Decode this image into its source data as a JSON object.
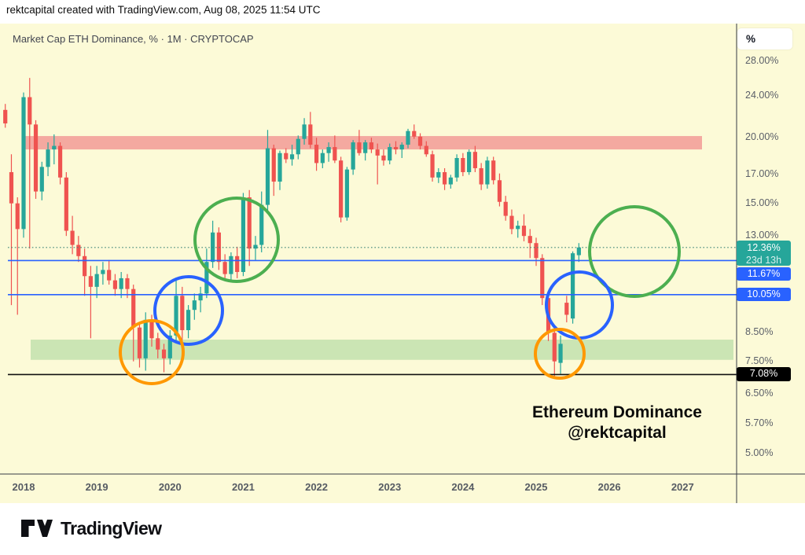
{
  "header": {
    "credit": "rektcapital created with TradingView.com, Aug 08, 2025 11:54 UTC"
  },
  "chart": {
    "legend": "Market Cap ETH Dominance, % · 1M · CRYPTOCAP",
    "axis_button_label": "%",
    "watermark_line1": "Ethereum Dominance",
    "watermark_line2": "@rektcapital",
    "price_axis_ticks": [
      {
        "label": "28.00%",
        "value": 28.0
      },
      {
        "label": "24.00%",
        "value": 24.0
      },
      {
        "label": "20.00%",
        "value": 20.0
      },
      {
        "label": "17.00%",
        "value": 17.0
      },
      {
        "label": "15.00%",
        "value": 15.0
      },
      {
        "label": "13.00%",
        "value": 13.0
      },
      {
        "label": "8.50%",
        "value": 8.5
      },
      {
        "label": "7.50%",
        "value": 7.5
      },
      {
        "label": "6.50%",
        "value": 6.5
      },
      {
        "label": "5.70%",
        "value": 5.7
      },
      {
        "label": "5.00%",
        "value": 5.0
      }
    ],
    "price_labels": [
      {
        "text": "12.36%",
        "sub": "23d 13h",
        "value": 12.36,
        "bg": "#26A69A",
        "kind": "current"
      },
      {
        "text": "11.67%",
        "value": 11.67,
        "bg": "#2962FF",
        "kind": "level"
      },
      {
        "text": "10.05%",
        "value": 10.05,
        "bg": "#2962FF",
        "kind": "level"
      },
      {
        "text": "7.08%",
        "value": 7.08,
        "bg": "#000000",
        "kind": "level"
      }
    ],
    "time_axis_years": [
      "2018",
      "2019",
      "2020",
      "2021",
      "2022",
      "2023",
      "2024",
      "2025",
      "2026",
      "2027"
    ]
  },
  "chart_data": {
    "type": "candlestick",
    "title": "Market Cap ETH Dominance, % · 1M · CRYPTOCAP",
    "ylabel": "%",
    "yscale": "log",
    "ylim": [
      4.7,
      29.5
    ],
    "xlim_years": [
      2017.75,
      2027.8
    ],
    "current_price": 12.36,
    "bar_countdown": "23d 13h",
    "up_color": "#26A69A",
    "down_color": "#EF5350",
    "levels": [
      {
        "value": 12.36,
        "color": "#3E8578",
        "style": "dotted"
      },
      {
        "value": 11.67,
        "color": "#2962FF",
        "style": "solid"
      },
      {
        "value": 10.05,
        "color": "#2962FF",
        "style": "solid"
      },
      {
        "value": 7.08,
        "color": "#111111",
        "style": "solid"
      }
    ],
    "bands": [
      {
        "from": 19.0,
        "to": 20.15,
        "x1": 31,
        "x2": 893,
        "color": "#F4A9A0",
        "name": "resistance-zone"
      },
      {
        "from": 7.55,
        "to": 8.25,
        "x1": 39,
        "x2": 933,
        "color": "#CBE5B4",
        "name": "support-zone"
      }
    ],
    "circle_annotations": [
      {
        "cx": 301,
        "cy": 305,
        "r": 53,
        "color": "#4CAF50"
      },
      {
        "cx": 240,
        "cy": 395,
        "r": 43,
        "color": "#2962FF"
      },
      {
        "cx": 193,
        "cy": 448,
        "r": 40,
        "color": "#FF9800"
      },
      {
        "cx": 807,
        "cy": 320,
        "r": 57,
        "color": "#4CAF50"
      },
      {
        "cx": 737,
        "cy": 388,
        "r": 42,
        "color": "#2962FF"
      },
      {
        "cx": 712,
        "cy": 450,
        "r": 31,
        "color": "#FF9800"
      }
    ],
    "candles": [
      [
        "2017-10",
        22.6,
        23.2,
        20.9,
        21.3
      ],
      [
        "2017-11",
        17.2,
        18.6,
        9.6,
        15.0
      ],
      [
        "2017-12",
        15.0,
        15.4,
        9.2,
        13.4
      ],
      [
        "2018-01",
        13.4,
        24.4,
        12.9,
        23.9
      ],
      [
        "2018-02",
        23.9,
        26.0,
        12.3,
        21.2
      ],
      [
        "2018-03",
        21.2,
        21.6,
        15.3,
        15.8
      ],
      [
        "2018-04",
        15.8,
        18.0,
        15.2,
        17.6
      ],
      [
        "2018-05",
        17.6,
        19.6,
        16.9,
        19.0
      ],
      [
        "2018-06",
        19.0,
        20.3,
        17.8,
        19.3
      ],
      [
        "2018-07",
        19.3,
        19.6,
        16.3,
        16.8
      ],
      [
        "2018-08",
        16.8,
        17.2,
        13.0,
        13.3
      ],
      [
        "2018-09",
        13.3,
        14.2,
        12.0,
        12.5
      ],
      [
        "2018-10",
        12.5,
        13.0,
        11.6,
        11.9
      ],
      [
        "2018-11",
        11.9,
        12.3,
        10.0,
        10.9
      ],
      [
        "2018-12",
        10.9,
        11.4,
        8.3,
        10.4
      ],
      [
        "2019-01",
        10.4,
        11.4,
        9.9,
        11.0
      ],
      [
        "2019-02",
        11.0,
        11.6,
        10.5,
        11.2
      ],
      [
        "2019-03",
        11.2,
        11.7,
        10.5,
        10.7
      ],
      [
        "2019-04",
        10.7,
        11.0,
        10.0,
        10.3
      ],
      [
        "2019-05",
        10.3,
        11.1,
        9.9,
        10.8
      ],
      [
        "2019-06",
        10.8,
        11.0,
        9.9,
        10.3
      ],
      [
        "2019-07",
        10.3,
        10.5,
        7.5,
        8.7
      ],
      [
        "2019-08",
        8.7,
        8.9,
        7.3,
        7.6
      ],
      [
        "2019-09",
        7.6,
        9.3,
        7.2,
        9.0
      ],
      [
        "2019-10",
        9.0,
        9.2,
        8.0,
        8.3
      ],
      [
        "2019-11",
        8.3,
        8.5,
        7.6,
        7.9
      ],
      [
        "2019-12",
        7.9,
        8.1,
        7.15,
        7.6
      ],
      [
        "2020-01",
        7.6,
        8.6,
        7.4,
        8.4
      ],
      [
        "2020-02",
        8.4,
        10.7,
        8.2,
        10.0
      ],
      [
        "2020-03",
        10.0,
        10.4,
        8.1,
        8.6
      ],
      [
        "2020-04",
        8.6,
        9.6,
        8.3,
        9.4
      ],
      [
        "2020-05",
        9.4,
        10.1,
        9.0,
        9.8
      ],
      [
        "2020-06",
        9.8,
        10.4,
        9.3,
        10.1
      ],
      [
        "2020-07",
        10.1,
        12.3,
        9.9,
        11.6
      ],
      [
        "2020-08",
        11.6,
        13.9,
        11.3,
        13.2
      ],
      [
        "2020-09",
        13.2,
        13.5,
        11.2,
        11.6
      ],
      [
        "2020-10",
        11.6,
        12.0,
        10.7,
        11.0
      ],
      [
        "2020-11",
        11.0,
        12.1,
        10.6,
        11.9
      ],
      [
        "2020-12",
        11.9,
        12.4,
        10.8,
        11.1
      ],
      [
        "2021-01",
        11.1,
        15.7,
        10.9,
        15.4
      ],
      [
        "2021-02",
        15.4,
        15.9,
        11.4,
        12.3
      ],
      [
        "2021-03",
        12.3,
        13.0,
        11.7,
        12.5
      ],
      [
        "2021-04",
        12.5,
        15.8,
        12.1,
        14.9
      ],
      [
        "2021-05",
        14.9,
        20.7,
        14.4,
        19.1
      ],
      [
        "2021-06",
        19.1,
        19.4,
        15.5,
        16.5
      ],
      [
        "2021-07",
        16.5,
        18.9,
        15.9,
        18.7
      ],
      [
        "2021-08",
        18.7,
        19.1,
        17.9,
        18.2
      ],
      [
        "2021-09",
        18.2,
        19.4,
        17.7,
        18.6
      ],
      [
        "2021-10",
        18.6,
        20.2,
        18.2,
        19.9
      ],
      [
        "2021-11",
        19.9,
        21.8,
        19.4,
        21.2
      ],
      [
        "2021-12",
        21.2,
        22.4,
        19.1,
        19.4
      ],
      [
        "2022-01",
        19.4,
        20.0,
        17.3,
        17.9
      ],
      [
        "2022-02",
        17.9,
        19.0,
        17.5,
        18.7
      ],
      [
        "2022-03",
        18.7,
        19.6,
        18.0,
        19.2
      ],
      [
        "2022-04",
        19.2,
        20.2,
        17.9,
        18.1
      ],
      [
        "2022-05",
        18.1,
        18.4,
        13.8,
        14.1
      ],
      [
        "2022-06",
        14.1,
        17.6,
        13.9,
        17.4
      ],
      [
        "2022-07",
        17.4,
        19.8,
        17.0,
        19.6
      ],
      [
        "2022-08",
        19.6,
        20.7,
        18.5,
        18.7
      ],
      [
        "2022-09",
        18.7,
        19.8,
        18.1,
        19.6
      ],
      [
        "2022-10",
        19.6,
        20.0,
        18.7,
        19.0
      ],
      [
        "2022-11",
        19.0,
        19.5,
        16.3,
        18.5
      ],
      [
        "2022-12",
        18.5,
        19.0,
        17.7,
        18.1
      ],
      [
        "2023-01",
        18.1,
        19.5,
        17.8,
        19.2
      ],
      [
        "2023-02",
        19.2,
        19.7,
        18.6,
        19.0
      ],
      [
        "2023-03",
        19.0,
        19.6,
        18.3,
        19.4
      ],
      [
        "2023-04",
        19.4,
        20.8,
        19.1,
        20.6
      ],
      [
        "2023-05",
        20.6,
        21.2,
        19.9,
        20.1
      ],
      [
        "2023-06",
        20.1,
        20.4,
        19.0,
        19.3
      ],
      [
        "2023-07",
        19.3,
        19.7,
        18.4,
        18.6
      ],
      [
        "2023-08",
        18.6,
        18.9,
        16.5,
        16.8
      ],
      [
        "2023-09",
        16.8,
        17.5,
        16.4,
        17.2
      ],
      [
        "2023-10",
        17.2,
        17.5,
        15.9,
        16.3
      ],
      [
        "2023-11",
        16.3,
        17.0,
        16.0,
        16.8
      ],
      [
        "2023-12",
        16.8,
        18.6,
        16.5,
        18.3
      ],
      [
        "2024-01",
        18.3,
        18.7,
        16.9,
        17.2
      ],
      [
        "2024-02",
        17.2,
        19.0,
        17.0,
        18.8
      ],
      [
        "2024-03",
        18.8,
        19.3,
        17.2,
        17.5
      ],
      [
        "2024-04",
        17.5,
        17.9,
        15.9,
        16.3
      ],
      [
        "2024-05",
        16.3,
        18.4,
        16.0,
        18.1
      ],
      [
        "2024-06",
        18.1,
        18.4,
        16.3,
        16.6
      ],
      [
        "2024-07",
        16.6,
        17.1,
        14.8,
        15.1
      ],
      [
        "2024-08",
        15.1,
        15.5,
        13.9,
        14.2
      ],
      [
        "2024-09",
        14.2,
        14.6,
        13.1,
        13.4
      ],
      [
        "2024-10",
        13.4,
        13.9,
        12.9,
        13.6
      ],
      [
        "2024-11",
        13.6,
        14.3,
        12.7,
        13.0
      ],
      [
        "2024-12",
        13.0,
        13.4,
        11.8,
        12.6
      ],
      [
        "2025-01",
        12.6,
        12.9,
        11.4,
        11.8
      ],
      [
        "2025-02",
        11.8,
        12.0,
        9.6,
        9.9
      ],
      [
        "2025-03",
        9.9,
        10.1,
        8.2,
        8.5
      ],
      [
        "2025-04",
        8.5,
        8.7,
        7.03,
        7.5
      ],
      [
        "2025-05",
        7.45,
        8.4,
        7.1,
        8.1
      ],
      [
        "2025-06",
        9.7,
        10.0,
        8.9,
        9.2
      ],
      [
        "2025-07",
        9.05,
        12.15,
        8.85,
        12.05
      ],
      [
        "2025-08",
        11.95,
        12.6,
        11.6,
        12.36
      ]
    ]
  },
  "footer": {
    "logo_text": "TradingView"
  }
}
